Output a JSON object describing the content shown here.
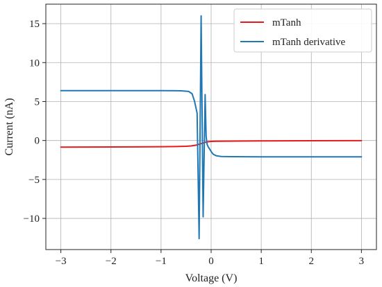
{
  "chart_data": {
    "type": "line",
    "xlabel": "Voltage (V)",
    "ylabel": "Current (nA)",
    "xlim": [
      -3.3,
      3.3
    ],
    "ylim": [
      -14.0,
      17.5
    ],
    "xticks": [
      -3,
      -2,
      -1,
      0,
      1,
      2,
      3
    ],
    "yticks": [
      -10,
      -5,
      0,
      5,
      10,
      15
    ],
    "xtick_labels": [
      "−3",
      "−2",
      "−1",
      "0",
      "1",
      "2",
      "3"
    ],
    "ytick_labels": [
      "−10",
      "−5",
      "0",
      "5",
      "10",
      "15"
    ],
    "grid": true,
    "legend": "top-right",
    "series": [
      {
        "name": "mTanh",
        "color": "#e41a1c",
        "x": [
          -3.0,
          -2.5,
          -2.0,
          -1.5,
          -1.0,
          -0.7,
          -0.5,
          -0.4,
          -0.3,
          -0.25,
          -0.2,
          -0.15,
          -0.1,
          -0.05,
          0.0,
          0.1,
          0.3,
          0.5,
          1.0,
          2.0,
          3.0
        ],
        "y": [
          -0.85,
          -0.84,
          -0.83,
          -0.82,
          -0.8,
          -0.78,
          -0.74,
          -0.7,
          -0.6,
          -0.5,
          -0.4,
          -0.3,
          -0.2,
          -0.15,
          -0.12,
          -0.1,
          -0.08,
          -0.07,
          -0.05,
          -0.03,
          -0.02
        ]
      },
      {
        "name": "mTanh derivative",
        "color": "#1f77b4",
        "x": [
          -3.0,
          -2.0,
          -1.0,
          -0.6,
          -0.45,
          -0.38,
          -0.33,
          -0.28,
          -0.24,
          -0.2,
          -0.16,
          -0.12,
          -0.1,
          -0.08,
          -0.06,
          -0.04,
          -0.02,
          0.0,
          0.02,
          0.05,
          0.1,
          0.2,
          0.4,
          1.0,
          2.0,
          3.0
        ],
        "y": [
          6.4,
          6.4,
          6.4,
          6.38,
          6.3,
          6.0,
          5.0,
          3.5,
          -12.6,
          16.0,
          -9.8,
          5.9,
          0.5,
          -0.5,
          -0.8,
          -1.0,
          -1.2,
          -1.4,
          -1.6,
          -1.8,
          -1.95,
          -2.05,
          -2.08,
          -2.1,
          -2.1,
          -2.1
        ]
      }
    ]
  }
}
